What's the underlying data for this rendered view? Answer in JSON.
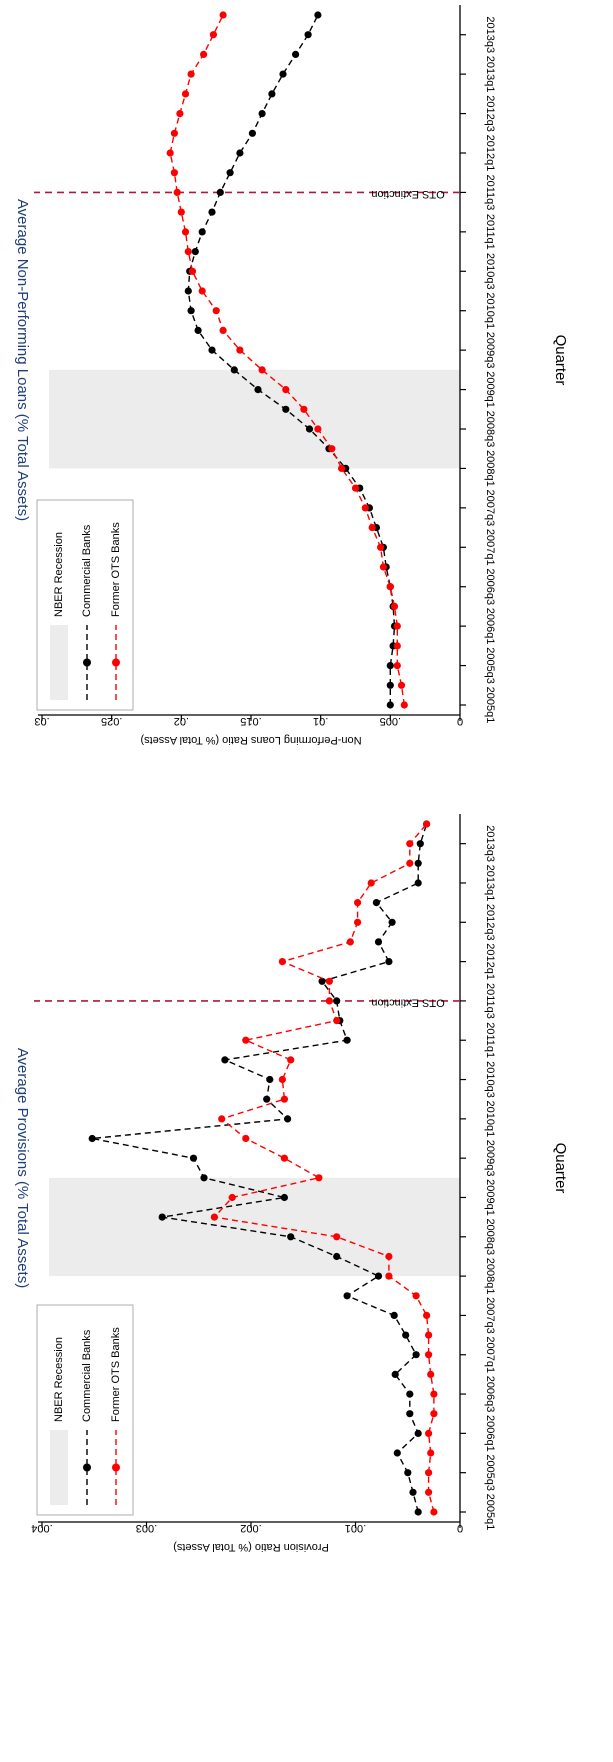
{
  "colors": {
    "commercial": "#000000",
    "ots": "#ff0000",
    "recession": "#ececec",
    "ots_line": "#b5163a",
    "title": "#1f3f7a"
  },
  "chart_data": [
    {
      "type": "line",
      "title": "Average Non-Performing Loans (% Total Assets)",
      "xlabel": "Quarter",
      "ylabel": "Non-Performing Loans Ratio (% Total Assets)",
      "ylim": [
        0,
        0.03
      ],
      "yticks": [
        "0",
        ".005",
        ".01",
        ".015",
        ".02",
        ".025",
        ".03"
      ],
      "ytick_values": [
        0,
        0.005,
        0.01,
        0.015,
        0.02,
        0.025,
        0.03
      ],
      "xticks": [
        "2005q1",
        "2005q3",
        "2006q1",
        "2006q3",
        "2007q1",
        "2007q3",
        "2008q1",
        "2008q3",
        "2009q1",
        "2009q3",
        "2010q1",
        "2010q3",
        "2011q1",
        "2011q3",
        "2012q1",
        "2012q3",
        "2013q1",
        "2013q3"
      ],
      "x": [
        "2005q1",
        "2005q2",
        "2005q3",
        "2005q4",
        "2006q1",
        "2006q2",
        "2006q3",
        "2006q4",
        "2007q1",
        "2007q2",
        "2007q3",
        "2007q4",
        "2008q1",
        "2008q2",
        "2008q3",
        "2008q4",
        "2009q1",
        "2009q2",
        "2009q3",
        "2009q4",
        "2010q1",
        "2010q2",
        "2010q3",
        "2010q4",
        "2011q1",
        "2011q2",
        "2011q3",
        "2011q4",
        "2012q1",
        "2012q2",
        "2012q3",
        "2012q4",
        "2013q1",
        "2013q2",
        "2013q3",
        "2013q4"
      ],
      "series": [
        {
          "name": "Commercial Banks",
          "color_key": "commercial",
          "values": [
            0.005,
            0.005,
            0.005,
            0.0048,
            0.0047,
            0.0048,
            0.005,
            0.0053,
            0.0055,
            0.006,
            0.0065,
            0.0072,
            0.0082,
            0.0094,
            0.0108,
            0.0125,
            0.0145,
            0.0162,
            0.0178,
            0.0188,
            0.0193,
            0.0195,
            0.0194,
            0.019,
            0.0185,
            0.0178,
            0.0172,
            0.0165,
            0.0158,
            0.0149,
            0.0142,
            0.0135,
            0.0127,
            0.0118,
            0.0109,
            0.0102
          ]
        },
        {
          "name": "Former OTS Banks",
          "color_key": "ots",
          "values": [
            0.004,
            0.0042,
            0.0045,
            0.0045,
            0.0045,
            0.0047,
            0.005,
            0.0055,
            0.0057,
            0.0063,
            0.0068,
            0.0075,
            0.0085,
            0.0092,
            0.0102,
            0.0112,
            0.0125,
            0.0142,
            0.0158,
            0.017,
            0.0175,
            0.0185,
            0.0192,
            0.0195,
            0.0197,
            0.02,
            0.0203,
            0.0205,
            0.0208,
            0.0205,
            0.0201,
            0.0197,
            0.0193,
            0.0184,
            0.0177,
            0.017
          ]
        }
      ],
      "recession": {
        "start": "2008q1",
        "end": "2009q2",
        "label": "NBER Recession"
      },
      "event": {
        "at": "2011q3",
        "label": "OTS Extinction"
      },
      "legend": [
        "NBER Recession",
        "Commercial Banks",
        "Former OTS Banks"
      ]
    },
    {
      "type": "line",
      "title": "Average Provisions (% Total Assets)",
      "xlabel": "Quarter",
      "ylabel": "Provision Ratio (% Total Assets)",
      "ylim": [
        0,
        0.004
      ],
      "yticks": [
        "0",
        ".001",
        ".002",
        ".003",
        ".004"
      ],
      "ytick_values": [
        0,
        0.001,
        0.002,
        0.003,
        0.004
      ],
      "xticks": [
        "2005q1",
        "2005q3",
        "2006q1",
        "2006q3",
        "2007q1",
        "2007q3",
        "2008q1",
        "2008q3",
        "2009q1",
        "2009q3",
        "2010q1",
        "2010q3",
        "2011q1",
        "2011q3",
        "2012q1",
        "2012q3",
        "2013q1",
        "2013q3"
      ],
      "x": [
        "2005q1",
        "2005q2",
        "2005q3",
        "2005q4",
        "2006q1",
        "2006q2",
        "2006q3",
        "2006q4",
        "2007q1",
        "2007q2",
        "2007q3",
        "2007q4",
        "2008q1",
        "2008q2",
        "2008q3",
        "2008q4",
        "2009q1",
        "2009q2",
        "2009q3",
        "2009q4",
        "2010q1",
        "2010q2",
        "2010q3",
        "2010q4",
        "2011q1",
        "2011q2",
        "2011q3",
        "2011q4",
        "2012q1",
        "2012q2",
        "2012q3",
        "2012q4",
        "2013q1",
        "2013q2",
        "2013q3",
        "2013q4"
      ],
      "series": [
        {
          "name": "Commercial Banks",
          "color_key": "commercial",
          "values": [
            0.0004,
            0.00045,
            0.0005,
            0.0006,
            0.0004,
            0.00048,
            0.00048,
            0.00062,
            0.00042,
            0.00052,
            0.00063,
            0.00108,
            0.00078,
            0.00118,
            0.00162,
            0.00285,
            0.00168,
            0.00245,
            0.00255,
            0.00352,
            0.00165,
            0.00185,
            0.00182,
            0.00225,
            0.00108,
            0.00115,
            0.00118,
            0.00132,
            0.00068,
            0.00078,
            0.00065,
            0.0008,
            0.0004,
            0.0004,
            0.00038,
            0.00032
          ]
        },
        {
          "name": "Former OTS Banks",
          "color_key": "ots",
          "values": [
            0.00025,
            0.0003,
            0.0003,
            0.00028,
            0.0003,
            0.00025,
            0.00025,
            0.00028,
            0.0003,
            0.0003,
            0.00032,
            0.00042,
            0.00068,
            0.00068,
            0.00118,
            0.00235,
            0.00218,
            0.00135,
            0.00168,
            0.00205,
            0.00228,
            0.00168,
            0.0017,
            0.00162,
            0.00205,
            0.00118,
            0.00125,
            0.00125,
            0.0017,
            0.00105,
            0.00098,
            0.00098,
            0.00085,
            0.00048,
            0.00048,
            0.00032
          ]
        }
      ],
      "recession": {
        "start": "2008q1",
        "end": "2009q2",
        "label": "NBER Recession"
      },
      "event": {
        "at": "2011q3",
        "label": "OTS Extinction"
      },
      "legend": [
        "NBER Recession",
        "Commercial Banks",
        "Former OTS Banks"
      ]
    }
  ]
}
